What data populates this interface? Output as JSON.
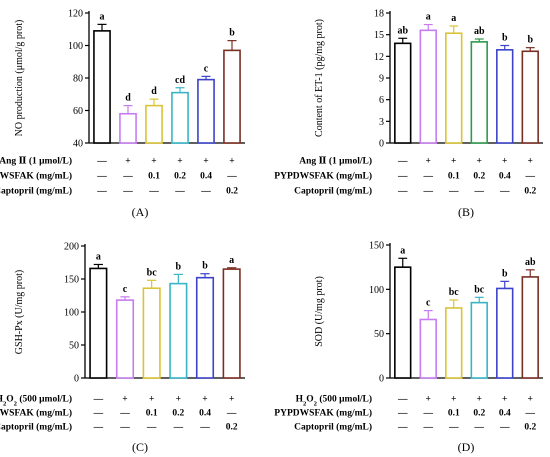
{
  "chart_data": [
    {
      "type": "bar",
      "panel": "(A)",
      "ylabel": "NO production (μmol/g prot)",
      "ylim": [
        40,
        120
      ],
      "yticks": [
        40,
        60,
        80,
        100,
        120
      ],
      "values": [
        109,
        58,
        63,
        71,
        79,
        97
      ],
      "errors": [
        4,
        5,
        4,
        3,
        2,
        6
      ],
      "sig_letters": [
        "a",
        "d",
        "d",
        "cd",
        "c",
        "b"
      ],
      "colors": [
        "#000000",
        "#c77cf0",
        "#d9c437",
        "#39b6c6",
        "#3c43c8",
        "#7a2e22"
      ],
      "treatments": [
        {
          "label": "Ang Ⅱ (1 μmol/L)",
          "marks": [
            "—",
            "+",
            "+",
            "+",
            "+",
            "+"
          ]
        },
        {
          "label": "PYPDWSFAK (mg/mL)",
          "marks": [
            "—",
            "—",
            "0.1",
            "0.2",
            "0.4",
            "—"
          ]
        },
        {
          "label": "Captopril (mg/mL)",
          "marks": [
            "—",
            "—",
            "—",
            "—",
            "—",
            "0.2"
          ]
        }
      ]
    },
    {
      "type": "bar",
      "panel": "(B)",
      "ylabel": "Content of ET-1 (pg/mg prot)",
      "ylim": [
        0,
        18
      ],
      "yticks": [
        0,
        3,
        6,
        9,
        12,
        15,
        18
      ],
      "values": [
        13.8,
        15.6,
        15.2,
        14.0,
        12.9,
        12.7
      ],
      "errors": [
        0.7,
        0.8,
        1.0,
        0.4,
        0.6,
        0.5
      ],
      "sig_letters": [
        "ab",
        "a",
        "a",
        "ab",
        "b",
        "b"
      ],
      "colors": [
        "#000000",
        "#c77cf0",
        "#d9c437",
        "#2e9a4a",
        "#3c43c8",
        "#7a2e22"
      ],
      "treatments": [
        {
          "label": "Ang Ⅱ (1 μmol/L)",
          "marks": [
            "—",
            "+",
            "+",
            "+",
            "+",
            "+"
          ]
        },
        {
          "label": "PYPDWSFAK (mg/mL)",
          "marks": [
            "—",
            "—",
            "0.1",
            "0.2",
            "0.4",
            "—"
          ]
        },
        {
          "label": "Captopril (mg/mL)",
          "marks": [
            "—",
            "—",
            "—",
            "—",
            "—",
            "0.2"
          ]
        }
      ]
    },
    {
      "type": "bar",
      "panel": "(C)",
      "ylabel": "GSH-Px (U/mg prot)",
      "ylim": [
        0,
        200
      ],
      "yticks": [
        0,
        50,
        100,
        150,
        200
      ],
      "values": [
        166,
        118,
        136,
        143,
        152,
        165
      ],
      "errors": [
        6,
        5,
        12,
        14,
        6,
        2
      ],
      "sig_letters": [
        "a",
        "c",
        "bc",
        "b",
        "b",
        "a"
      ],
      "colors": [
        "#000000",
        "#c77cf0",
        "#d9c437",
        "#39b6c6",
        "#3c43c8",
        "#7a2e22"
      ],
      "treatments": [
        {
          "label": "H2O2 (500 μmol/L)",
          "marks": [
            "—",
            "+",
            "+",
            "+",
            "+",
            "+"
          ]
        },
        {
          "label": "PYPDWSFAK (mg/mL)",
          "marks": [
            "—",
            "—",
            "0.1",
            "0.2",
            "0.4",
            "—"
          ]
        },
        {
          "label": "Captopril (mg/mL)",
          "marks": [
            "—",
            "—",
            "—",
            "—",
            "—",
            "0.2"
          ]
        }
      ]
    },
    {
      "type": "bar",
      "panel": "(D)",
      "ylabel": "SOD (U/mg prot)",
      "ylim": [
        0,
        150
      ],
      "yticks": [
        0,
        50,
        100,
        150
      ],
      "values": [
        125,
        66,
        79,
        85,
        101,
        114
      ],
      "errors": [
        10,
        10,
        9,
        6,
        8,
        8
      ],
      "sig_letters": [
        "a",
        "c",
        "bc",
        "bc",
        "b",
        "ab"
      ],
      "colors": [
        "#000000",
        "#c77cf0",
        "#d9c437",
        "#39b6c6",
        "#3c43c8",
        "#7a2e22"
      ],
      "treatments": [
        {
          "label": "H2O2 (500 μmol/L)",
          "marks": [
            "—",
            "+",
            "+",
            "+",
            "+",
            "+"
          ]
        },
        {
          "label": "PYPDWSFAK (mg/mL)",
          "marks": [
            "—",
            "—",
            "0.1",
            "0.2",
            "0.4",
            "—"
          ]
        },
        {
          "label": "Captopril (mg/mL)",
          "marks": [
            "—",
            "—",
            "—",
            "—",
            "—",
            "0.2"
          ]
        }
      ]
    }
  ]
}
